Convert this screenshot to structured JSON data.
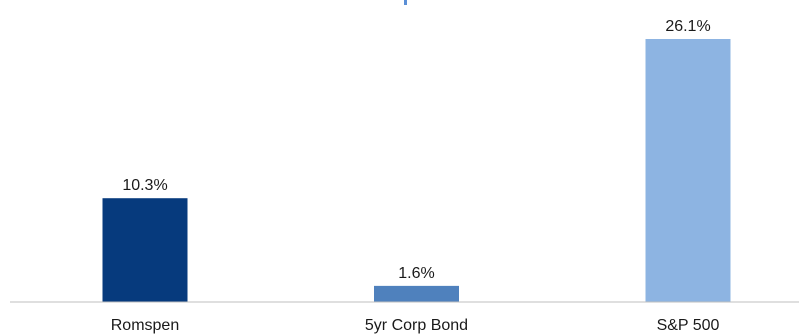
{
  "chart_data": {
    "type": "bar",
    "categories": [
      "Romspen",
      "5yr Corp Bond",
      "S&P 500"
    ],
    "values": [
      10.3,
      1.6,
      26.1
    ],
    "value_labels": [
      "10.3%",
      "1.6%",
      "26.1%"
    ],
    "unit": "%",
    "colors": [
      "#063a7d",
      "#4f81bd",
      "#8db4e2"
    ],
    "ylim": [
      0,
      28
    ],
    "grid": false,
    "legend": "none"
  }
}
